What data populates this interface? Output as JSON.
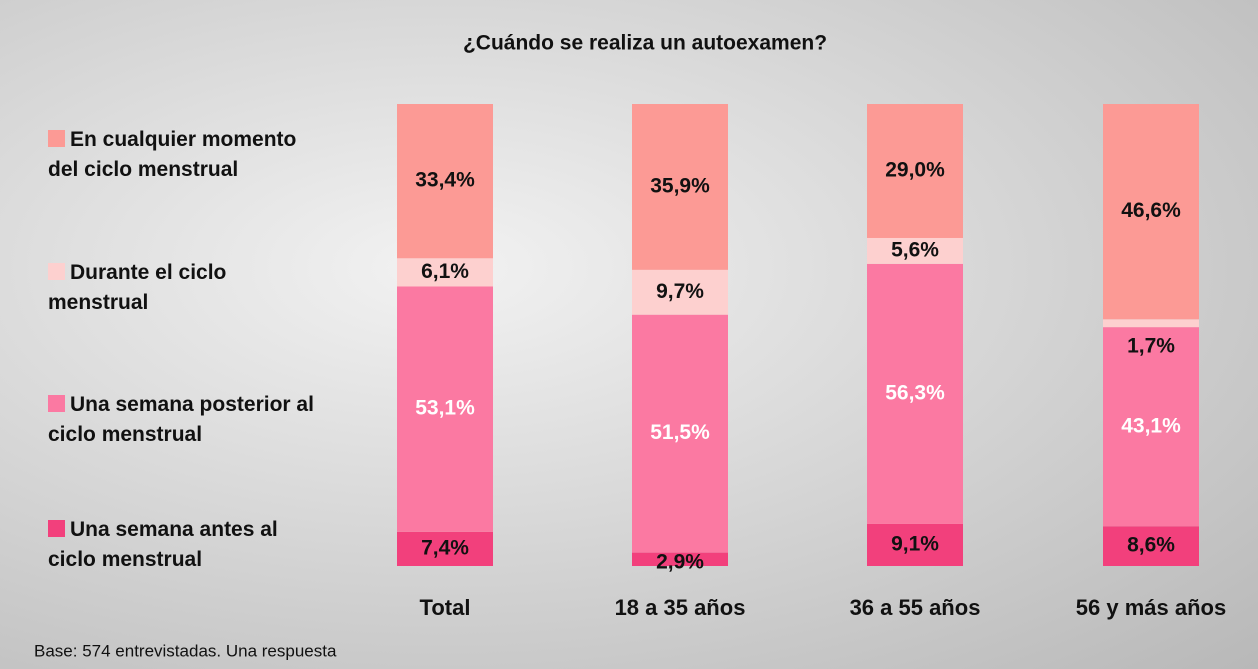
{
  "chart_data": {
    "type": "stacked_bar",
    "title": "¿Cuándo se realiza un autoexamen?",
    "footnote": "Base: 574 entrevistadas. Una respuesta",
    "categories": [
      "Total",
      "18 a 35 años",
      "36 a 55 años",
      "56 y más años"
    ],
    "ylim": [
      0,
      100
    ],
    "series": [
      {
        "name": "Una semana antes al ciclo menstrual",
        "color": "#f2407c",
        "label_color": "#111111",
        "values": [
          7.4,
          2.9,
          9.1,
          8.6
        ],
        "value_labels": [
          "7,4%",
          "2,9%",
          "9,1%",
          "8,6%"
        ]
      },
      {
        "name": "Una semana posterior al ciclo menstrual",
        "color": "#fb79a2",
        "label_color": "#ffffff",
        "values": [
          53.1,
          51.5,
          56.3,
          43.1
        ],
        "value_labels": [
          "53,1%",
          "51,5%",
          "56,3%",
          "43,1%"
        ]
      },
      {
        "name": "Durante el ciclo menstrual",
        "color": "#fdd0cf",
        "label_color": "#111111",
        "values": [
          6.1,
          9.7,
          5.6,
          1.7
        ],
        "value_labels": [
          "6,1%",
          "9,7%",
          "5,6%",
          "1,7%"
        ]
      },
      {
        "name": "En cualquier momento del ciclo menstrual",
        "color": "#fc9a95",
        "label_color": "#111111",
        "values": [
          33.4,
          35.9,
          29.0,
          46.6
        ],
        "value_labels": [
          "33,4%",
          "35,9%",
          "29,0%",
          "46,6%"
        ]
      }
    ]
  }
}
